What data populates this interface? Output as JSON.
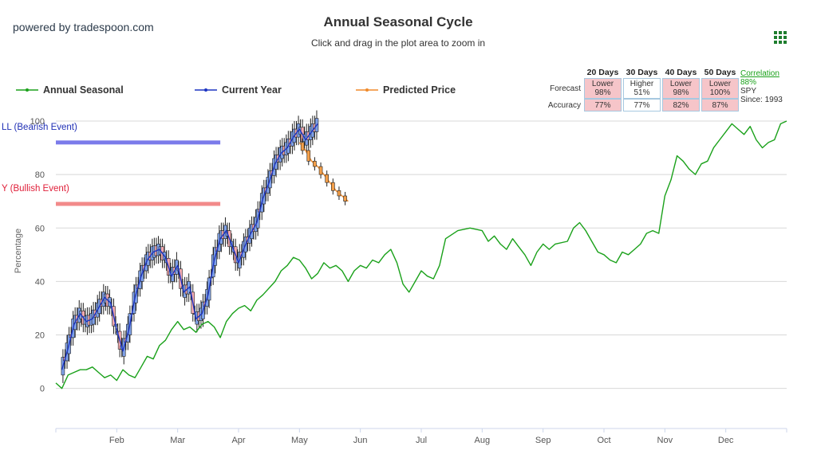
{
  "brand": "powered by tradespoon.com",
  "chart_data": {
    "type": "line",
    "title": "Annual Seasonal Cycle",
    "subtitle": "Click and drag in the plot area to zoom in",
    "ylabel": "Percentage",
    "ylim": [
      -15,
      100
    ],
    "yticks": [
      0,
      20,
      40,
      60,
      80,
      100
    ],
    "xlim": [
      0,
      12
    ],
    "months": [
      "Feb",
      "Mar",
      "Apr",
      "May",
      "Jun",
      "Jul",
      "Aug",
      "Sep",
      "Oct",
      "Nov",
      "Dec"
    ],
    "grid": true,
    "legend_position": "top-left",
    "legend": [
      "Annual Seasonal",
      "Current Year",
      "Predicted Price"
    ],
    "levels": [
      {
        "label": "LL (Bearish Event)",
        "value": 92,
        "x_end": 2.7,
        "color": "#7b7bea",
        "label_color": "#1f2fb5"
      },
      {
        "label": "Y (Bullish Event)",
        "value": 69,
        "x_end": 2.7,
        "color": "#f28a8a",
        "label_color": "#e0203a"
      }
    ],
    "series": [
      {
        "name": "Annual Seasonal",
        "color": "#1aa11a",
        "points": [
          [
            0,
            2
          ],
          [
            0.1,
            0
          ],
          [
            0.2,
            5
          ],
          [
            0.3,
            6
          ],
          [
            0.4,
            7
          ],
          [
            0.5,
            7
          ],
          [
            0.6,
            8
          ],
          [
            0.7,
            6
          ],
          [
            0.8,
            4
          ],
          [
            0.9,
            5
          ],
          [
            1.0,
            3
          ],
          [
            1.1,
            7
          ],
          [
            1.2,
            5
          ],
          [
            1.3,
            4
          ],
          [
            1.4,
            8
          ],
          [
            1.5,
            12
          ],
          [
            1.6,
            11
          ],
          [
            1.7,
            16
          ],
          [
            1.8,
            18
          ],
          [
            1.9,
            22
          ],
          [
            2.0,
            25
          ],
          [
            2.1,
            22
          ],
          [
            2.2,
            23
          ],
          [
            2.3,
            21
          ],
          [
            2.4,
            24
          ],
          [
            2.5,
            25
          ],
          [
            2.6,
            23
          ],
          [
            2.7,
            19
          ],
          [
            2.8,
            25
          ],
          [
            2.9,
            28
          ],
          [
            3.0,
            30
          ],
          [
            3.1,
            31
          ],
          [
            3.2,
            29
          ],
          [
            3.3,
            33
          ],
          [
            3.4,
            35
          ],
          [
            3.6,
            40
          ],
          [
            3.7,
            44
          ],
          [
            3.8,
            46
          ],
          [
            3.9,
            49
          ],
          [
            4.0,
            48
          ],
          [
            4.1,
            45
          ],
          [
            4.2,
            41
          ],
          [
            4.3,
            43
          ],
          [
            4.4,
            47
          ],
          [
            4.5,
            45
          ],
          [
            4.6,
            46
          ],
          [
            4.7,
            44
          ],
          [
            4.8,
            40
          ],
          [
            4.9,
            44
          ],
          [
            5.0,
            46
          ],
          [
            5.1,
            45
          ],
          [
            5.2,
            48
          ],
          [
            5.3,
            47
          ],
          [
            5.4,
            50
          ],
          [
            5.5,
            52
          ],
          [
            5.6,
            47
          ],
          [
            5.7,
            39
          ],
          [
            5.8,
            36
          ],
          [
            5.9,
            40
          ],
          [
            6.0,
            44
          ],
          [
            6.1,
            42
          ],
          [
            6.2,
            41
          ],
          [
            6.3,
            46
          ],
          [
            6.4,
            56
          ],
          [
            6.6,
            59
          ],
          [
            6.8,
            60
          ],
          [
            7.0,
            59
          ],
          [
            7.1,
            55
          ],
          [
            7.2,
            57
          ],
          [
            7.3,
            54
          ],
          [
            7.4,
            52
          ],
          [
            7.5,
            56
          ],
          [
            7.6,
            53
          ],
          [
            7.7,
            50
          ],
          [
            7.8,
            46
          ],
          [
            7.9,
            51
          ],
          [
            8.0,
            54
          ],
          [
            8.1,
            52
          ],
          [
            8.2,
            54
          ],
          [
            8.4,
            55
          ],
          [
            8.5,
            60
          ],
          [
            8.6,
            62
          ],
          [
            8.7,
            59
          ],
          [
            8.8,
            55
          ],
          [
            8.9,
            51
          ],
          [
            9.0,
            50
          ],
          [
            9.1,
            48
          ],
          [
            9.2,
            47
          ],
          [
            9.3,
            51
          ],
          [
            9.4,
            50
          ],
          [
            9.5,
            52
          ],
          [
            9.6,
            54
          ],
          [
            9.7,
            58
          ],
          [
            9.8,
            59
          ],
          [
            9.9,
            58
          ],
          [
            10.0,
            72
          ],
          [
            10.1,
            78
          ],
          [
            10.2,
            87
          ],
          [
            10.3,
            85
          ],
          [
            10.4,
            82
          ],
          [
            10.5,
            80
          ],
          [
            10.6,
            84
          ],
          [
            10.7,
            85
          ],
          [
            10.8,
            90
          ],
          [
            10.9,
            93
          ],
          [
            11.0,
            96
          ],
          [
            11.1,
            99
          ],
          [
            11.2,
            97
          ],
          [
            11.3,
            95
          ],
          [
            11.4,
            98
          ],
          [
            11.5,
            93
          ],
          [
            11.6,
            90
          ],
          [
            11.7,
            92
          ],
          [
            11.8,
            93
          ],
          [
            11.9,
            99
          ],
          [
            12.0,
            100
          ]
        ]
      },
      {
        "name": "Current Year",
        "color": "#1c34c2",
        "points": [
          [
            0.1,
            7
          ],
          [
            0.2,
            15
          ],
          [
            0.3,
            24
          ],
          [
            0.4,
            28
          ],
          [
            0.5,
            25
          ],
          [
            0.6,
            26
          ],
          [
            0.7,
            30
          ],
          [
            0.8,
            34
          ],
          [
            0.9,
            32
          ],
          [
            1.0,
            22
          ],
          [
            1.1,
            14
          ],
          [
            1.2,
            22
          ],
          [
            1.3,
            34
          ],
          [
            1.4,
            42
          ],
          [
            1.5,
            48
          ],
          [
            1.6,
            51
          ],
          [
            1.7,
            52
          ],
          [
            1.8,
            49
          ],
          [
            1.9,
            42
          ],
          [
            2.0,
            46
          ],
          [
            2.1,
            36
          ],
          [
            2.2,
            38
          ],
          [
            2.3,
            26
          ],
          [
            2.4,
            28
          ],
          [
            2.5,
            35
          ],
          [
            2.6,
            48
          ],
          [
            2.7,
            56
          ],
          [
            2.8,
            59
          ],
          [
            2.9,
            53
          ],
          [
            3.0,
            47
          ],
          [
            3.1,
            53
          ],
          [
            3.2,
            58
          ],
          [
            3.3,
            62
          ],
          [
            3.4,
            71
          ],
          [
            3.5,
            77
          ],
          [
            3.6,
            84
          ],
          [
            3.7,
            88
          ],
          [
            3.8,
            90
          ],
          [
            3.9,
            94
          ],
          [
            4.0,
            97
          ],
          [
            4.1,
            93
          ],
          [
            4.2,
            96
          ],
          [
            4.3,
            99
          ]
        ]
      },
      {
        "name": "Predicted Price",
        "color": "#f08a2a",
        "points": [
          [
            4.0,
            92
          ],
          [
            4.1,
            89
          ],
          [
            4.2,
            85
          ],
          [
            4.3,
            83
          ],
          [
            4.4,
            80
          ],
          [
            4.5,
            77
          ],
          [
            4.6,
            74
          ],
          [
            4.7,
            72
          ],
          [
            4.8,
            70
          ]
        ]
      }
    ],
    "stats": {
      "columns": [
        "20 Days",
        "30 Days",
        "40 Days",
        "50 Days"
      ],
      "forecast_label": "Forecast",
      "accuracy_label": "Accuracy",
      "forecast": [
        {
          "dir": "Lower",
          "pct": "98%"
        },
        {
          "dir": "Higher",
          "pct": "51%"
        },
        {
          "dir": "Lower",
          "pct": "98%"
        },
        {
          "dir": "Lower",
          "pct": "100%"
        }
      ],
      "forecast_highlight": [
        true,
        false,
        true,
        true
      ],
      "accuracy": [
        "77%",
        "77%",
        "82%",
        "87%"
      ],
      "accuracy_highlight": [
        true,
        false,
        true,
        true
      ]
    },
    "correlation": {
      "label": "Correlation",
      "value": "88%",
      "symbol": "SPY",
      "since": "Since: 1993"
    }
  },
  "colors": {
    "grid": "#d8d8d8",
    "axis": "#ccd6eb",
    "up_candle": "#7fa0e6",
    "down_candle": "#f2aab0",
    "menu": "#1e7d2e"
  }
}
